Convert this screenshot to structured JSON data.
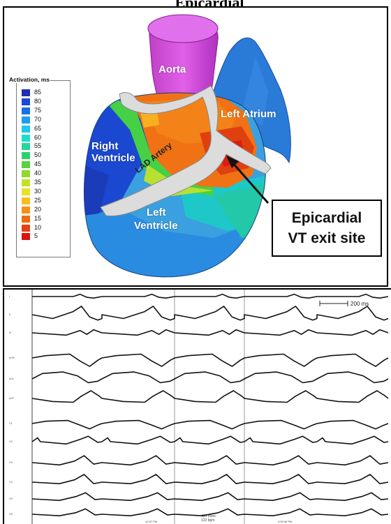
{
  "figure": {
    "title": "Epicardial",
    "colors": {
      "frame": "#000000",
      "trace": "#111111",
      "background": "#ffffff"
    }
  },
  "activation_map": {
    "legend": {
      "title": "Activation, ms",
      "entries": [
        {
          "value": "85",
          "color": "#1f2db0"
        },
        {
          "value": "80",
          "color": "#1a48d8"
        },
        {
          "value": "75",
          "color": "#1a6ee8"
        },
        {
          "value": "70",
          "color": "#1e9cf0"
        },
        {
          "value": "65",
          "color": "#1ec8ec"
        },
        {
          "value": "60",
          "color": "#1edcc8"
        },
        {
          "value": "55",
          "color": "#22d89a"
        },
        {
          "value": "50",
          "color": "#2ed06a"
        },
        {
          "value": "45",
          "color": "#58d23e"
        },
        {
          "value": "40",
          "color": "#8ed82c"
        },
        {
          "value": "35",
          "color": "#c4e024"
        },
        {
          "value": "30",
          "color": "#ece024"
        },
        {
          "value": "25",
          "color": "#f8bc1c"
        },
        {
          "value": "20",
          "color": "#f89018"
        },
        {
          "value": "15",
          "color": "#f06a12"
        },
        {
          "value": "10",
          "color": "#e8400e"
        },
        {
          "value": "5",
          "color": "#dc1410"
        }
      ]
    },
    "labels": {
      "aorta": "Aorta",
      "left_atrium": "Left Atrium",
      "right_ventricle_line1": "Right",
      "right_ventricle_line2": "Ventricle",
      "lad_artery": "LAD Artery",
      "left_ventricle_line1": "Left",
      "left_ventricle_line2": "Ventricle"
    },
    "callout": {
      "line1": "Epicardial",
      "line2": "VT exit site"
    }
  },
  "ecg_panel": {
    "scale_bar_label": "200 ms",
    "cycle_label": "493 msec",
    "rate_label": "122 bpm",
    "time_labels": [
      "10:37 PM",
      "3:00:06 PM"
    ],
    "lead_labels": [
      "I",
      "II",
      "III",
      "aVR",
      "aVL",
      "aVF",
      "V1",
      "V2",
      "V3",
      "V4",
      "V5",
      "V6"
    ]
  }
}
